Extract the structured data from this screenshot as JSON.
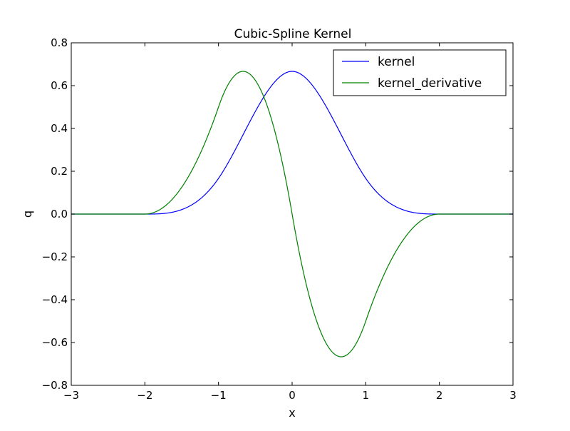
{
  "chart_data": {
    "type": "line",
    "title": "Cubic-Spline Kernel",
    "xlabel": "x",
    "ylabel": "q",
    "xlim": [
      -3,
      3
    ],
    "ylim": [
      -0.8,
      0.8
    ],
    "xticks": [
      -3,
      -2,
      -1,
      0,
      1,
      2,
      3
    ],
    "xtick_labels": [
      "−3",
      "−2",
      "−1",
      "0",
      "1",
      "2",
      "3"
    ],
    "yticks": [
      -0.8,
      -0.6,
      -0.4,
      -0.2,
      0.0,
      0.2,
      0.4,
      0.6,
      0.8
    ],
    "ytick_labels": [
      "−0.8",
      "−0.6",
      "−0.4",
      "−0.2",
      "0.0",
      "0.2",
      "0.4",
      "0.6",
      "0.8"
    ],
    "grid": false,
    "legend_position": "top-right",
    "x": [
      -3.0,
      -2.75,
      -2.5,
      -2.25,
      -2.0,
      -1.75,
      -1.5,
      -1.25,
      -1.0,
      -0.75,
      -0.5,
      -0.25,
      0.0,
      0.25,
      0.5,
      0.75,
      1.0,
      1.25,
      1.5,
      1.75,
      2.0,
      2.25,
      2.5,
      2.75,
      3.0
    ],
    "series": [
      {
        "name": "kernel",
        "color": "#0000ff",
        "values": [
          0.0,
          0.0,
          0.0,
          0.0,
          0.0,
          0.0021,
          0.0208,
          0.0703,
          0.1667,
          0.3047,
          0.4583,
          0.6016,
          0.6667,
          0.6016,
          0.4583,
          0.3047,
          0.1667,
          0.0703,
          0.0208,
          0.0021,
          0.0,
          0.0,
          0.0,
          0.0,
          0.0
        ]
      },
      {
        "name": "kernel_derivative",
        "color": "#008000",
        "values": [
          0.0,
          0.0,
          0.0,
          0.0,
          0.0,
          0.0312,
          0.125,
          0.2812,
          0.5,
          0.6562,
          0.625,
          0.4062,
          0.0,
          -0.4062,
          -0.625,
          -0.6562,
          -0.5,
          -0.2812,
          -0.125,
          -0.0312,
          0.0,
          0.0,
          0.0,
          0.0,
          0.0
        ]
      }
    ]
  }
}
